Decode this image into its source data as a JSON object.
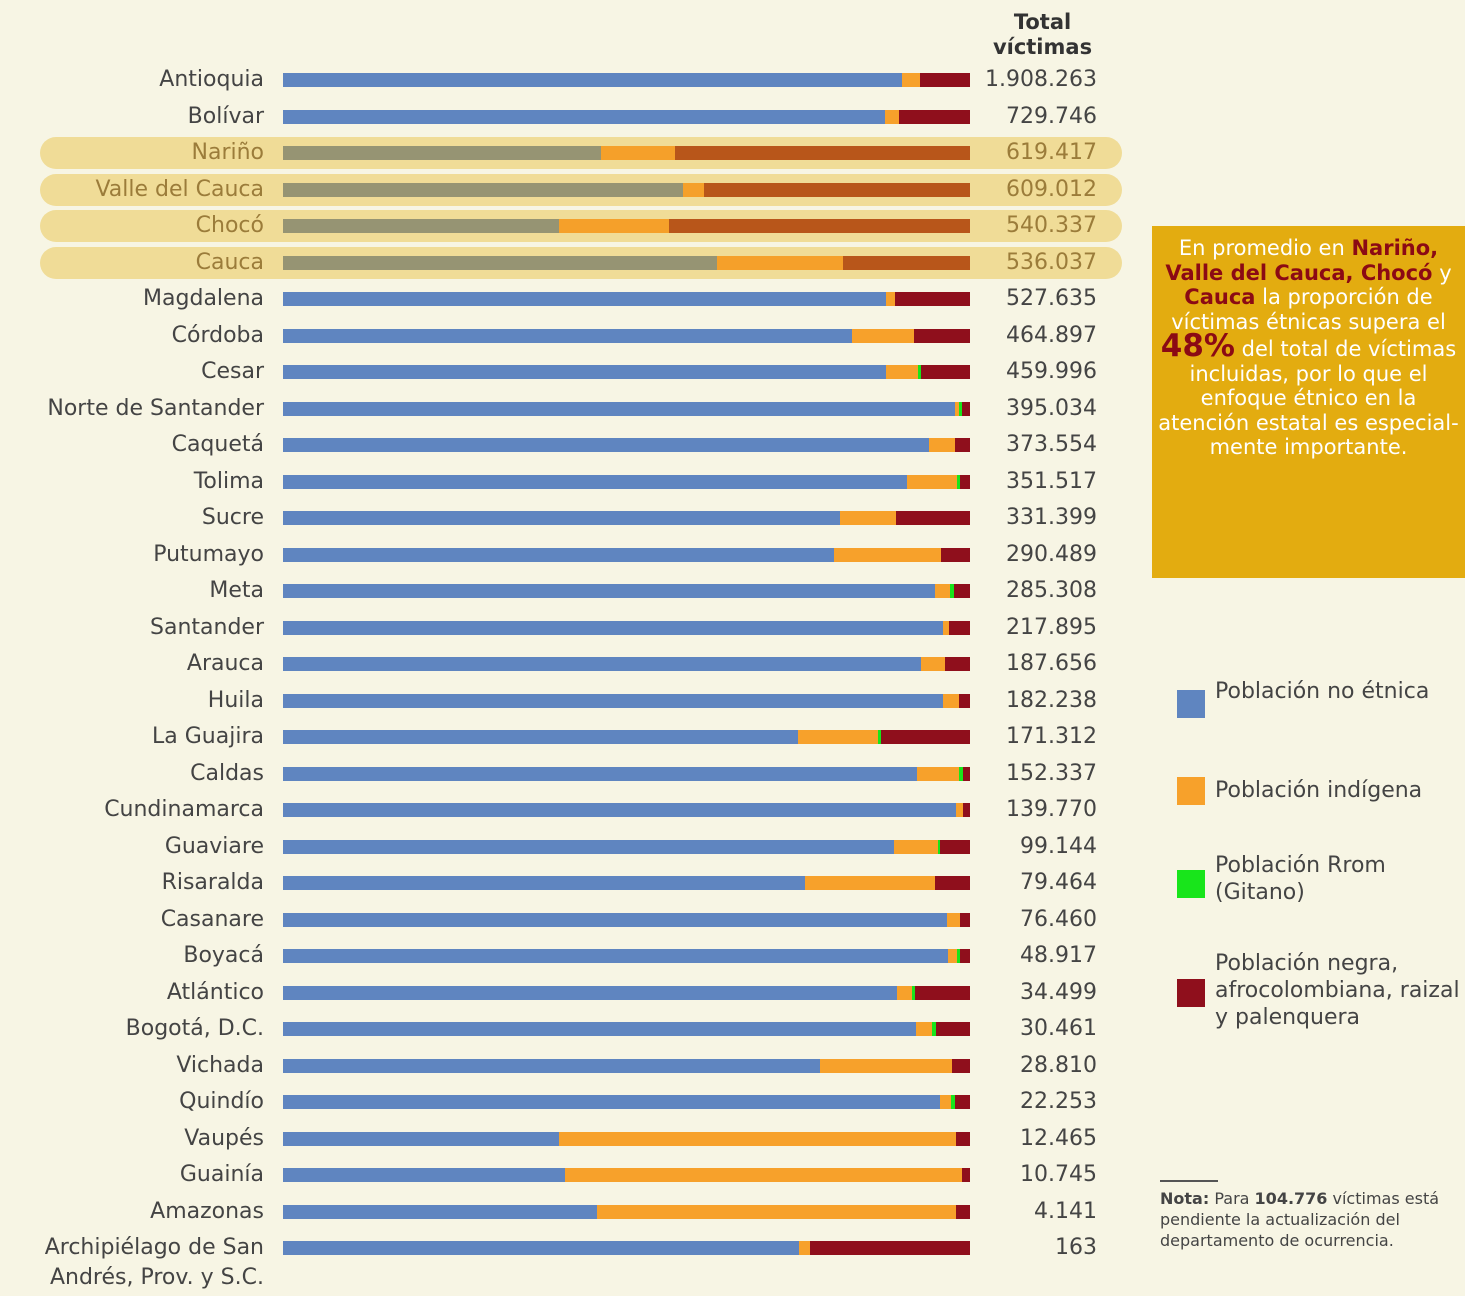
{
  "chart_data": {
    "type": "stacked_bar_100",
    "total_header": "Total víctimas",
    "xlim": [
      0,
      100
    ],
    "categories": [
      "Antioquia",
      "Bolívar",
      "Nariño",
      "Valle del Cauca",
      "Chocó",
      "Cauca",
      "Magdalena",
      "Córdoba",
      "Cesar",
      "Norte de Santander",
      "Caquetá",
      "Tolima",
      "Sucre",
      "Putumayo",
      "Meta",
      "Santander",
      "Arauca",
      "Huila",
      "La Guajira",
      "Caldas",
      "Cundinamarca",
      "Guaviare",
      "Risaralda",
      "Casanare",
      "Boyacá",
      "Atlántico",
      "Bogotá, D.C.",
      "Vichada",
      "Quindío",
      "Vaupés",
      "Guainía",
      "Amazonas",
      "Archipiélago de San Andrés, Prov. y S.C."
    ],
    "highlight_rows": [
      2,
      3,
      4,
      5
    ],
    "series": [
      {
        "name": "Población no étnica",
        "color": "#5f85c0",
        "highlight_color": "#969473",
        "values": [
          90.1,
          87.6,
          46.3,
          58.2,
          40.2,
          63.2,
          87.8,
          82.8,
          87.8,
          97.8,
          94.0,
          90.8,
          81.1,
          80.2,
          94.9,
          96.1,
          92.9,
          96.1,
          75.0,
          92.3,
          98.0,
          88.9,
          76.0,
          96.7,
          96.8,
          89.4,
          92.1,
          78.2,
          95.6,
          40.2,
          41.0,
          45.7,
          75.1
        ]
      },
      {
        "name": "Población indígena",
        "color": "#f7a12b",
        "highlight_color": "#f5a02a",
        "values": [
          2.6,
          2.0,
          10.8,
          3.1,
          16.0,
          18.3,
          1.3,
          9.0,
          4.7,
          0.6,
          3.8,
          7.3,
          8.2,
          15.6,
          2.2,
          0.9,
          3.5,
          2.3,
          11.6,
          6.1,
          1.0,
          6.4,
          18.9,
          1.9,
          1.3,
          2.2,
          2.3,
          19.2,
          1.6,
          57.8,
          57.8,
          52.3,
          1.6
        ]
      },
      {
        "name": "Población Rrom (Gitano)",
        "color": "#18e51b",
        "highlight_color": "#18e51b",
        "values": [
          0,
          0,
          0,
          0,
          0,
          0,
          0,
          0,
          0.4,
          0.4,
          0,
          0.4,
          0,
          0,
          0.6,
          0,
          0,
          0,
          0.4,
          0.6,
          0,
          0.4,
          0,
          0,
          0.4,
          0.4,
          0.6,
          0,
          0.6,
          0,
          0,
          0,
          0
        ]
      },
      {
        "name": "Población negra, afrocolombiana, raizal y palenquera",
        "color": "#8f0f1c",
        "highlight_color": "#b8561a",
        "values": [
          7.3,
          10.4,
          42.9,
          38.7,
          43.8,
          18.5,
          10.9,
          8.2,
          7.1,
          1.2,
          2.2,
          1.5,
          10.7,
          4.2,
          2.3,
          3.0,
          3.6,
          1.6,
          13.0,
          1.0,
          1.0,
          4.3,
          5.1,
          1.4,
          1.5,
          8.0,
          5.0,
          2.6,
          2.2,
          2.0,
          1.2,
          2.0,
          23.3
        ]
      }
    ],
    "totals": [
      {
        "value": 1908263,
        "label": "1.908.263"
      },
      {
        "value": 729746,
        "label": "729.746"
      },
      {
        "value": 619417,
        "label": "619.417"
      },
      {
        "value": 609012,
        "label": "609.012"
      },
      {
        "value": 540337,
        "label": "540.337"
      },
      {
        "value": 536037,
        "label": "536.037"
      },
      {
        "value": 527635,
        "label": "527.635"
      },
      {
        "value": 464897,
        "label": "464.897"
      },
      {
        "value": 459996,
        "label": "459.996"
      },
      {
        "value": 395034,
        "label": "395.034"
      },
      {
        "value": 373554,
        "label": "373.554"
      },
      {
        "value": 351517,
        "label": "351.517"
      },
      {
        "value": 331399,
        "label": "331.399"
      },
      {
        "value": 290489,
        "label": "290.489"
      },
      {
        "value": 285308,
        "label": "285.308"
      },
      {
        "value": 217895,
        "label": "217.895"
      },
      {
        "value": 187656,
        "label": "187.656"
      },
      {
        "value": 182238,
        "label": "182.238"
      },
      {
        "value": 171312,
        "label": "171.312"
      },
      {
        "value": 152337,
        "label": "152.337"
      },
      {
        "value": 139770,
        "label": "139.770"
      },
      {
        "value": 99144,
        "label": "99.144"
      },
      {
        "value": 79464,
        "label": "79.464"
      },
      {
        "value": 76460,
        "label": "76.460"
      },
      {
        "value": 48917,
        "label": "48.917"
      },
      {
        "value": 34499,
        "label": "34.499"
      },
      {
        "value": 30461,
        "label": "30.461"
      },
      {
        "value": 28810,
        "label": "28.810"
      },
      {
        "value": 22253,
        "label": "22.253"
      },
      {
        "value": 12465,
        "label": "12.465"
      },
      {
        "value": 10745,
        "label": "10.745"
      },
      {
        "value": 4141,
        "label": "4.141"
      },
      163
    ],
    "callout": [
      {
        "text": "En promedio en",
        "style": "plain"
      },
      {
        "text": "Nariño, Valle del Cauca, Chocó",
        "style": "bold"
      },
      {
        "text": "y",
        "style": "plain"
      },
      {
        "text": "Cauca",
        "style": "bold"
      },
      {
        "text": "la proporción de víctimas étnicas supera el",
        "style": "plain"
      },
      {
        "text": "48%",
        "style": "big"
      },
      {
        "text": "del total de víctimas incluidas, por lo que el enfoque étnico en la atención estatal es especial-mente importante.",
        "style": "plain"
      }
    ],
    "note": [
      {
        "text": "Nota:",
        "style": "bold"
      },
      {
        "text": "Para",
        "style": "plain"
      },
      {
        "text": "104.776",
        "style": "bold"
      },
      {
        "text": "víctimas está pendiente la actualización del departamento de ocurrencia.",
        "style": "plain"
      }
    ]
  }
}
